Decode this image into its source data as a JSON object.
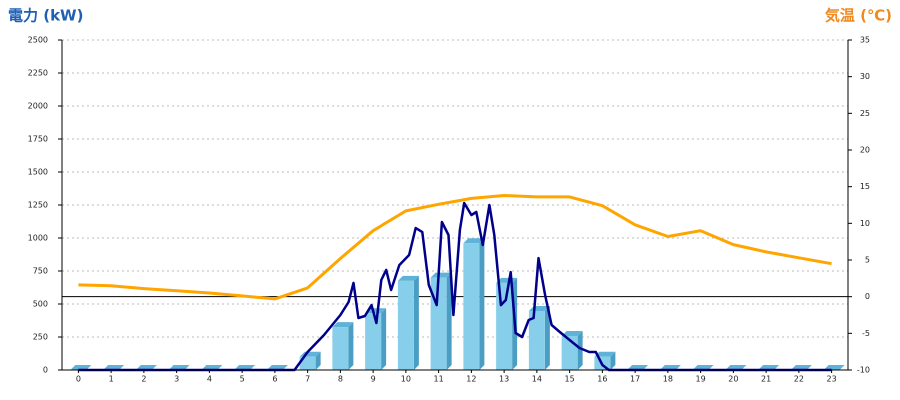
{
  "chart_data": {
    "type": "bar",
    "y_label": "電力 (kW)",
    "y2_label": "気温 (℃)",
    "categories": [
      "0",
      "1",
      "2",
      "3",
      "4",
      "5",
      "6",
      "7",
      "8",
      "9",
      "10",
      "11",
      "12",
      "13",
      "14",
      "15",
      "16",
      "17",
      "18",
      "19",
      "20",
      "21",
      "22",
      "23"
    ],
    "ylim": [
      0,
      2500
    ],
    "yticks": [
      0,
      250,
      500,
      750,
      1000,
      1250,
      1500,
      1750,
      2000,
      2250,
      2500
    ],
    "y2lim": [
      -10,
      35
    ],
    "y2ticks": [
      -10,
      -5,
      0,
      5,
      10,
      15,
      20,
      25,
      30,
      35
    ],
    "grid": true,
    "series": [
      {
        "type": "bar",
        "color": "#87ceeb",
        "values": [
          0,
          0,
          0,
          0,
          0,
          0,
          0,
          100,
          325,
          430,
          675,
          700,
          960,
          660,
          447,
          258,
          100,
          0,
          0,
          0,
          0,
          0,
          0,
          0
        ]
      },
      {
        "type": "line",
        "color": "#00008b",
        "x": [
          0,
          6.6,
          7.0,
          7.5,
          8.0,
          8.25,
          8.4,
          8.55,
          8.75,
          8.95,
          9.1,
          9.25,
          9.4,
          9.55,
          9.8,
          10.1,
          10.3,
          10.5,
          10.7,
          10.94,
          11.1,
          11.3,
          11.45,
          11.65,
          11.78,
          12.0,
          12.15,
          12.35,
          12.55,
          12.7,
          12.9,
          13.05,
          13.2,
          13.35,
          13.55,
          13.75,
          13.9,
          14.05,
          14.25,
          14.45,
          14.7,
          15.0,
          15.3,
          15.6,
          15.8,
          16.0,
          16.2,
          23
        ],
        "values": [
          0,
          0,
          136,
          265,
          417,
          515,
          660,
          394,
          409,
          492,
          356,
          682,
          758,
          606,
          795,
          871,
          1076,
          1045,
          644,
          492,
          1121,
          1023,
          417,
          1061,
          1265,
          1174,
          1197,
          947,
          1250,
          1023,
          492,
          530,
          742,
          280,
          250,
          379,
          394,
          848,
          568,
          341,
          288,
          227,
          167,
          136,
          136,
          38,
          0,
          0
        ]
      },
      {
        "type": "line",
        "axis": "y2",
        "color": "#ffa500",
        "values": [
          1.6,
          1.5,
          1.1,
          0.8,
          0.5,
          0.1,
          -0.3,
          1.2,
          5.2,
          9.0,
          11.7,
          12.6,
          13.4,
          13.8,
          13.6,
          13.6,
          12.4,
          9.8,
          8.2,
          9.0,
          7.1,
          6.1,
          5.3,
          4.5
        ]
      }
    ]
  }
}
